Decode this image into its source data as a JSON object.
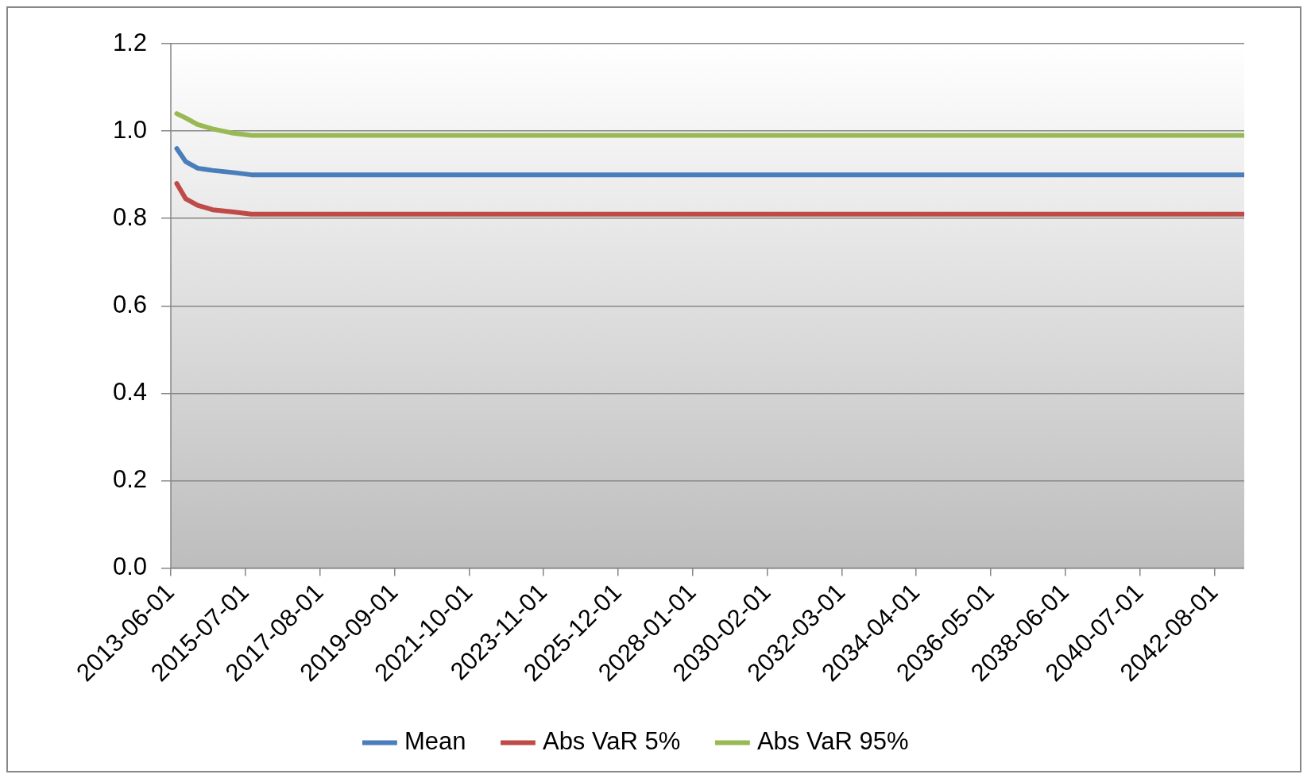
{
  "chart_data": {
    "type": "line",
    "xlim": [
      "2013-06-01",
      "2043-06-01"
    ],
    "xticks": [
      "2013-06-01",
      "2015-07-01",
      "2017-08-01",
      "2019-09-01",
      "2021-10-01",
      "2023-11-01",
      "2025-12-01",
      "2028-01-01",
      "2030-02-01",
      "2032-03-01",
      "2034-04-01",
      "2036-05-01",
      "2038-06-01",
      "2040-07-01",
      "2042-08-01"
    ],
    "ylim": [
      0,
      1.2
    ],
    "yticks": [
      {
        "value": 0,
        "label": "0.0"
      },
      {
        "value": 0.2,
        "label": "0.2"
      },
      {
        "value": 0.4,
        "label": "0.4"
      },
      {
        "value": 0.6,
        "label": "0.6"
      },
      {
        "value": 0.8,
        "label": "0.8"
      },
      {
        "value": 1,
        "label": "1.0"
      },
      {
        "value": 1.2,
        "label": "1.2"
      }
    ],
    "grid": "y",
    "legend": "bottom",
    "marker": "none",
    "line_style": "solid",
    "series": [
      {
        "name": "Mean",
        "color": "#4a7ebb",
        "x": [
          "2013-08-01",
          "2013-11-01",
          "2014-03-01",
          "2014-08-01",
          "2015-03-01",
          "2015-09-01",
          "2043-06-01"
        ],
        "values": [
          0.96,
          0.93,
          0.915,
          0.91,
          0.905,
          0.9,
          0.9
        ]
      },
      {
        "name": "Abs VaR 5%",
        "color": "#be4b48",
        "x": [
          "2013-08-01",
          "2013-11-01",
          "2014-03-01",
          "2014-08-01",
          "2015-03-01",
          "2015-09-01",
          "2043-06-01"
        ],
        "values": [
          0.88,
          0.845,
          0.83,
          0.82,
          0.815,
          0.81,
          0.81
        ]
      },
      {
        "name": "Abs VaR 95%",
        "color": "#98b954",
        "x": [
          "2013-08-01",
          "2013-11-01",
          "2014-03-01",
          "2014-08-01",
          "2015-03-01",
          "2015-09-01",
          "2043-06-01"
        ],
        "values": [
          1.04,
          1.03,
          1.015,
          1.005,
          0.995,
          0.99,
          0.99
        ]
      }
    ]
  }
}
